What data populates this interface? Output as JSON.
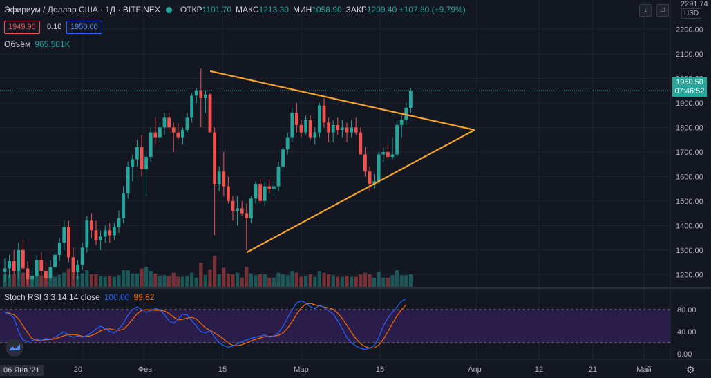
{
  "header": {
    "symbol": "Эфириум / Доллар США · 1Д · BITFINEX",
    "open_label": "ОТКР",
    "open": "1101.70",
    "high_label": "МАКС",
    "high": "1213.30",
    "low_label": "МИН",
    "low": "1058.90",
    "close_label": "ЗАКР",
    "close": "1209.40",
    "change": "+107.80 (+9.79%)"
  },
  "order": {
    "sell": "1949.90",
    "spread": "0.10",
    "buy": "1950.00"
  },
  "volume": {
    "label": "Объём",
    "value": "965.581K"
  },
  "stoch_rsi": {
    "label": "Stoch RSI 3 3 14 14 close",
    "k": "100.00",
    "d": "99.82"
  },
  "price_axis": {
    "top_label": "2291.74",
    "currency": "USD",
    "current_price": "1950.50",
    "countdown": "07:46:52",
    "ticks": [
      "2200.00",
      "2100.00",
      "2000.00",
      "1900.00",
      "1800.00",
      "1700.00",
      "1600.00",
      "1500.00",
      "1400.00",
      "1300.00",
      "1200.00"
    ]
  },
  "rsi_axis": {
    "ticks": [
      "80.00",
      "40.00",
      "0.00"
    ]
  },
  "time_axis": {
    "first": "06 Янв '21",
    "labels": [
      "20",
      "Фев",
      "15",
      "Мар",
      "15",
      "Апр",
      "12",
      "21",
      "Май"
    ]
  },
  "toolbar": {
    "down_icon": "chevron-down-icon",
    "square_icon": "maximize-icon",
    "settings_icon": "gear-icon"
  },
  "colors": {
    "up": "#26a69a",
    "down": "#ef5350",
    "triangle": "#f7a42c",
    "k": "#2962ff",
    "d": "#ff6d00",
    "rsi_band": "#2a1d4a"
  },
  "chart_data": {
    "type": "candlestick",
    "y_range": [
      1150,
      2320
    ],
    "rsi_range": [
      0,
      100
    ],
    "rsi_bands": [
      20,
      80
    ],
    "candles": [
      {
        "o": 1212,
        "h": 1265,
        "l": 1170,
        "c": 1225
      },
      {
        "o": 1225,
        "h": 1280,
        "l": 1185,
        "c": 1255
      },
      {
        "o": 1255,
        "h": 1300,
        "l": 1200,
        "c": 1215
      },
      {
        "o": 1215,
        "h": 1330,
        "l": 1180,
        "c": 1300
      },
      {
        "o": 1300,
        "h": 1340,
        "l": 1220,
        "c": 1225
      },
      {
        "o": 1225,
        "h": 1255,
        "l": 1160,
        "c": 1180
      },
      {
        "o": 1180,
        "h": 1230,
        "l": 1150,
        "c": 1195
      },
      {
        "o": 1195,
        "h": 1280,
        "l": 1185,
        "c": 1260
      },
      {
        "o": 1260,
        "h": 1290,
        "l": 1200,
        "c": 1215
      },
      {
        "o": 1215,
        "h": 1250,
        "l": 1160,
        "c": 1185
      },
      {
        "o": 1185,
        "h": 1260,
        "l": 1175,
        "c": 1230
      },
      {
        "o": 1230,
        "h": 1290,
        "l": 1220,
        "c": 1280
      },
      {
        "o": 1280,
        "h": 1350,
        "l": 1255,
        "c": 1330
      },
      {
        "o": 1330,
        "h": 1420,
        "l": 1300,
        "c": 1395
      },
      {
        "o": 1395,
        "h": 1420,
        "l": 1250,
        "c": 1270
      },
      {
        "o": 1270,
        "h": 1310,
        "l": 1180,
        "c": 1210
      },
      {
        "o": 1210,
        "h": 1260,
        "l": 1180,
        "c": 1240
      },
      {
        "o": 1240,
        "h": 1330,
        "l": 1220,
        "c": 1310
      },
      {
        "o": 1310,
        "h": 1440,
        "l": 1290,
        "c": 1420
      },
      {
        "o": 1420,
        "h": 1450,
        "l": 1350,
        "c": 1380
      },
      {
        "o": 1380,
        "h": 1420,
        "l": 1320,
        "c": 1340
      },
      {
        "o": 1340,
        "h": 1380,
        "l": 1300,
        "c": 1355
      },
      {
        "o": 1355,
        "h": 1400,
        "l": 1330,
        "c": 1380
      },
      {
        "o": 1380,
        "h": 1410,
        "l": 1330,
        "c": 1360
      },
      {
        "o": 1360,
        "h": 1410,
        "l": 1340,
        "c": 1395
      },
      {
        "o": 1395,
        "h": 1460,
        "l": 1370,
        "c": 1430
      },
      {
        "o": 1430,
        "h": 1560,
        "l": 1410,
        "c": 1530
      },
      {
        "o": 1530,
        "h": 1660,
        "l": 1510,
        "c": 1640
      },
      {
        "o": 1640,
        "h": 1690,
        "l": 1580,
        "c": 1670
      },
      {
        "o": 1670,
        "h": 1750,
        "l": 1640,
        "c": 1720
      },
      {
        "o": 1720,
        "h": 1770,
        "l": 1600,
        "c": 1630
      },
      {
        "o": 1630,
        "h": 1710,
        "l": 1520,
        "c": 1680
      },
      {
        "o": 1680,
        "h": 1800,
        "l": 1660,
        "c": 1780
      },
      {
        "o": 1780,
        "h": 1840,
        "l": 1730,
        "c": 1760
      },
      {
        "o": 1760,
        "h": 1820,
        "l": 1740,
        "c": 1800
      },
      {
        "o": 1800,
        "h": 1860,
        "l": 1770,
        "c": 1840
      },
      {
        "o": 1840,
        "h": 1860,
        "l": 1780,
        "c": 1800
      },
      {
        "o": 1800,
        "h": 1820,
        "l": 1700,
        "c": 1780
      },
      {
        "o": 1780,
        "h": 1820,
        "l": 1750,
        "c": 1760
      },
      {
        "o": 1760,
        "h": 1800,
        "l": 1730,
        "c": 1790
      },
      {
        "o": 1790,
        "h": 1860,
        "l": 1780,
        "c": 1840
      },
      {
        "o": 1840,
        "h": 1940,
        "l": 1820,
        "c": 1930
      },
      {
        "o": 1930,
        "h": 1960,
        "l": 1900,
        "c": 1950
      },
      {
        "o": 1950,
        "h": 2040,
        "l": 1800,
        "c": 1920
      },
      {
        "o": 1920,
        "h": 1950,
        "l": 1860,
        "c": 1935
      },
      {
        "o": 1935,
        "h": 1940,
        "l": 1780,
        "c": 1780
      },
      {
        "o": 1780,
        "h": 1800,
        "l": 1360,
        "c": 1570
      },
      {
        "o": 1570,
        "h": 1640,
        "l": 1540,
        "c": 1620
      },
      {
        "o": 1620,
        "h": 1700,
        "l": 1520,
        "c": 1560
      },
      {
        "o": 1560,
        "h": 1600,
        "l": 1490,
        "c": 1500
      },
      {
        "o": 1500,
        "h": 1520,
        "l": 1420,
        "c": 1460
      },
      {
        "o": 1460,
        "h": 1520,
        "l": 1400,
        "c": 1470
      },
      {
        "o": 1470,
        "h": 1500,
        "l": 1440,
        "c": 1450
      },
      {
        "o": 1450,
        "h": 1490,
        "l": 1300,
        "c": 1430
      },
      {
        "o": 1430,
        "h": 1520,
        "l": 1410,
        "c": 1510
      },
      {
        "o": 1510,
        "h": 1580,
        "l": 1490,
        "c": 1570
      },
      {
        "o": 1570,
        "h": 1590,
        "l": 1490,
        "c": 1500
      },
      {
        "o": 1500,
        "h": 1580,
        "l": 1480,
        "c": 1560
      },
      {
        "o": 1560,
        "h": 1590,
        "l": 1530,
        "c": 1550
      },
      {
        "o": 1550,
        "h": 1580,
        "l": 1520,
        "c": 1560
      },
      {
        "o": 1560,
        "h": 1660,
        "l": 1540,
        "c": 1640
      },
      {
        "o": 1640,
        "h": 1720,
        "l": 1620,
        "c": 1710
      },
      {
        "o": 1710,
        "h": 1780,
        "l": 1690,
        "c": 1760
      },
      {
        "o": 1760,
        "h": 1880,
        "l": 1740,
        "c": 1860
      },
      {
        "o": 1860,
        "h": 1900,
        "l": 1780,
        "c": 1810
      },
      {
        "o": 1810,
        "h": 1830,
        "l": 1760,
        "c": 1780
      },
      {
        "o": 1780,
        "h": 1850,
        "l": 1770,
        "c": 1830
      },
      {
        "o": 1830,
        "h": 1850,
        "l": 1750,
        "c": 1760
      },
      {
        "o": 1760,
        "h": 1800,
        "l": 1730,
        "c": 1780
      },
      {
        "o": 1780,
        "h": 1900,
        "l": 1760,
        "c": 1890
      },
      {
        "o": 1890,
        "h": 1920,
        "l": 1800,
        "c": 1820
      },
      {
        "o": 1820,
        "h": 1840,
        "l": 1740,
        "c": 1780
      },
      {
        "o": 1780,
        "h": 1830,
        "l": 1740,
        "c": 1810
      },
      {
        "o": 1810,
        "h": 1840,
        "l": 1770,
        "c": 1790
      },
      {
        "o": 1790,
        "h": 1830,
        "l": 1760,
        "c": 1800
      },
      {
        "o": 1800,
        "h": 1820,
        "l": 1740,
        "c": 1780
      },
      {
        "o": 1780,
        "h": 1830,
        "l": 1760,
        "c": 1800
      },
      {
        "o": 1800,
        "h": 1840,
        "l": 1770,
        "c": 1780
      },
      {
        "o": 1780,
        "h": 1800,
        "l": 1700,
        "c": 1690
      },
      {
        "o": 1690,
        "h": 1720,
        "l": 1600,
        "c": 1620
      },
      {
        "o": 1620,
        "h": 1640,
        "l": 1540,
        "c": 1570
      },
      {
        "o": 1570,
        "h": 1610,
        "l": 1550,
        "c": 1580
      },
      {
        "o": 1580,
        "h": 1700,
        "l": 1570,
        "c": 1690
      },
      {
        "o": 1690,
        "h": 1720,
        "l": 1660,
        "c": 1700
      },
      {
        "o": 1700,
        "h": 1730,
        "l": 1670,
        "c": 1680
      },
      {
        "o": 1680,
        "h": 1760,
        "l": 1670,
        "c": 1690
      },
      {
        "o": 1690,
        "h": 1830,
        "l": 1680,
        "c": 1810
      },
      {
        "o": 1810,
        "h": 1850,
        "l": 1760,
        "c": 1830
      },
      {
        "o": 1830,
        "h": 1900,
        "l": 1810,
        "c": 1880
      },
      {
        "o": 1880,
        "h": 1960,
        "l": 1860,
        "c": 1950
      }
    ],
    "triangle_lines": [
      {
        "from": {
          "bar": 45,
          "price": 2030
        },
        "to": {
          "bar": 103,
          "price": 1790
        }
      },
      {
        "from": {
          "bar": 53,
          "price": 1290
        },
        "to": {
          "bar": 103,
          "price": 1790
        }
      }
    ]
  }
}
